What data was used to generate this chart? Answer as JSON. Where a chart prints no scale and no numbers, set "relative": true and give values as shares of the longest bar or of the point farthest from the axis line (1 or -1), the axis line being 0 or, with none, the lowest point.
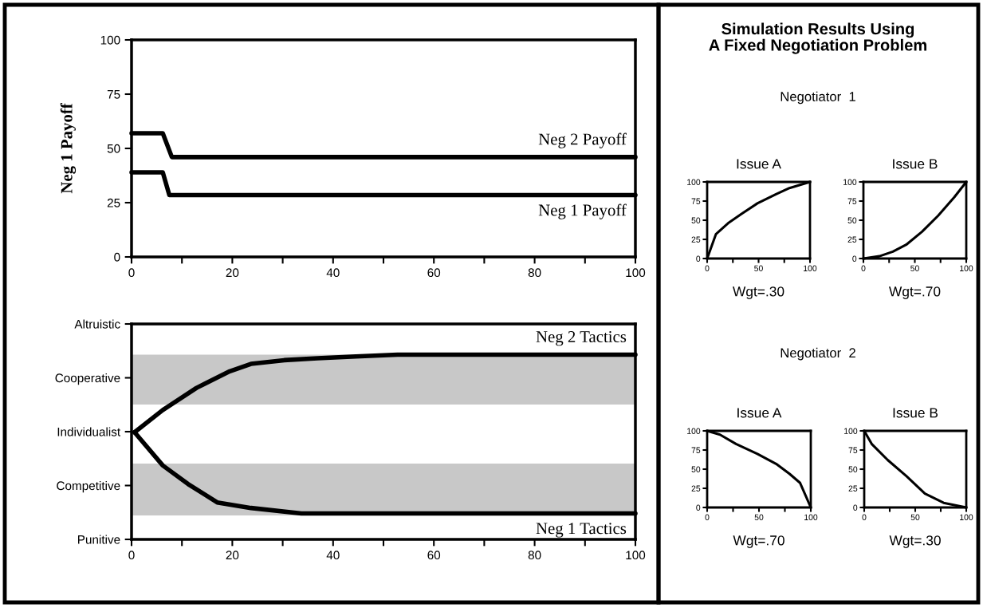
{
  "chart_data": [
    {
      "type": "line",
      "ylabel": "Neg 1 Payoff",
      "xlim": [
        0,
        100
      ],
      "ylim": [
        0,
        100
      ],
      "xticks": [
        0,
        {
          "value": 10,
          "label": null
        },
        20,
        {
          "value": 30,
          "label": null
        },
        40,
        {
          "value": 50,
          "label": null
        },
        60,
        {
          "value": 70,
          "label": null
        },
        80,
        {
          "value": 90,
          "label": null
        },
        100
      ],
      "yticks": [
        0,
        25,
        50,
        75,
        100
      ],
      "grid": false,
      "legend": false,
      "marker": "none",
      "line_style": "solid",
      "series": [
        {
          "name": "Neg 2 Payoff",
          "color": "#000000",
          "x": [
            0,
            6.2,
            8,
            100
          ],
          "values": [
            57,
            57,
            46,
            46
          ]
        },
        {
          "name": "Neg 1 Payoff",
          "color": "#000000",
          "x": [
            0,
            6.2,
            7.5,
            100
          ],
          "values": [
            39,
            39,
            28.5,
            28.5
          ]
        }
      ]
    },
    {
      "type": "line",
      "relative": true,
      "xlim": [
        0,
        100
      ],
      "xticks": [
        0,
        {
          "value": 10,
          "label": null
        },
        20,
        {
          "value": 30,
          "label": null
        },
        40,
        {
          "value": 50,
          "label": null
        },
        60,
        {
          "value": 70,
          "label": null
        },
        80,
        {
          "value": 90,
          "label": null
        },
        100
      ],
      "y_categories": [
        "Altruistic",
        "Cooperative",
        "Individualist",
        "Competitive",
        "Punitive"
      ],
      "grid": false,
      "legend": false,
      "marker": "none",
      "line_style": "solid",
      "bands": [
        {
          "axis": "y",
          "from": 0.73,
          "to": 1,
          "color": "#c8c8c8"
        },
        {
          "axis": "y",
          "from": 0.13,
          "to": 0.41,
          "color": "#c8c8c8"
        }
      ],
      "series": [
        {
          "name": "Neg 2 Tactics",
          "color": "#000000",
          "x": [
            0.6,
            6.2,
            12.9,
            19.5,
            23.7,
            30.3,
            36.9,
            44.5,
            52.8,
            100
          ],
          "values": [
            0.58,
            0.7,
            0.82,
            0.91,
            0.95,
            0.97,
            0.98,
            0.99,
            1,
            1
          ]
        },
        {
          "name": "Neg 1 Tactics",
          "color": "#000000",
          "x": [
            0.6,
            6.2,
            11.2,
            17,
            23.7,
            33.7,
            100
          ],
          "values": [
            0.58,
            0.4,
            0.3,
            0.2,
            0.17,
            0.14,
            0.14
          ]
        }
      ]
    },
    {
      "type": "other",
      "title": "Simulation Results Using\nA Fixed Negotiation Problem",
      "annotations": [
        "Negotiator  1",
        "Negotiator  2"
      ]
    },
    {
      "type": "line",
      "title": "Issue A",
      "xlabel": "Wgt=.30",
      "xlim": [
        0,
        100
      ],
      "ylim": [
        0,
        100
      ],
      "xticks": [
        0,
        {
          "value": 25,
          "label": null
        },
        50,
        {
          "value": 75,
          "label": null
        },
        100
      ],
      "yticks": [
        0,
        25,
        50,
        75,
        100
      ],
      "grid": false,
      "legend": false,
      "marker": "none",
      "line_style": "solid",
      "series": [
        {
          "color": "#000000",
          "x": [
            0,
            8.6,
            20.3,
            33.2,
            48.8,
            67,
            80,
            100
          ],
          "values": [
            0,
            32,
            46,
            58,
            72,
            84,
            92,
            100
          ]
        }
      ]
    },
    {
      "type": "line",
      "title": "Issue B",
      "xlabel": "Wgt=.70",
      "xlim": [
        0,
        100
      ],
      "ylim": [
        0,
        100
      ],
      "xticks": [
        0,
        {
          "value": 25,
          "label": null
        },
        50,
        {
          "value": 75,
          "label": null
        },
        100
      ],
      "yticks": [
        0,
        25,
        50,
        75,
        100
      ],
      "grid": false,
      "legend": false,
      "marker": "none",
      "line_style": "solid",
      "series": [
        {
          "color": "#000000",
          "x": [
            0,
            15.6,
            28.6,
            41.6,
            57,
            72.7,
            88.3,
            100
          ],
          "values": [
            0,
            3,
            9,
            18,
            35,
            56,
            80,
            100
          ]
        }
      ]
    },
    {
      "type": "line",
      "title": "Issue A",
      "xlabel": "Wgt=.70",
      "xlim": [
        0,
        100
      ],
      "ylim": [
        0,
        100
      ],
      "xticks": [
        0,
        {
          "value": 25,
          "label": null
        },
        50,
        {
          "value": 75,
          "label": null
        },
        100
      ],
      "yticks": [
        0,
        25,
        50,
        75,
        100
      ],
      "grid": false,
      "legend": false,
      "marker": "none",
      "line_style": "solid",
      "series": [
        {
          "color": "#000000",
          "x": [
            0,
            12.4,
            27.8,
            48.5,
            66.5,
            79.4,
            89.7,
            100
          ],
          "values": [
            100,
            95,
            83,
            70,
            57,
            44,
            32,
            0
          ]
        }
      ]
    },
    {
      "type": "line",
      "title": "Issue B",
      "xlabel": "Wgt=.30",
      "xlim": [
        0,
        100
      ],
      "ylim": [
        0,
        100
      ],
      "xticks": [
        0,
        {
          "value": 25,
          "label": null
        },
        50,
        {
          "value": 75,
          "label": null
        },
        100
      ],
      "yticks": [
        0,
        25,
        50,
        75,
        100
      ],
      "grid": false,
      "legend": false,
      "marker": "none",
      "line_style": "solid",
      "series": [
        {
          "color": "#000000",
          "x": [
            0,
            7.3,
            23,
            41.3,
            59.5,
            77.8,
            100
          ],
          "values": [
            100,
            83,
            62,
            41,
            18,
            6,
            0
          ]
        }
      ]
    }
  ]
}
